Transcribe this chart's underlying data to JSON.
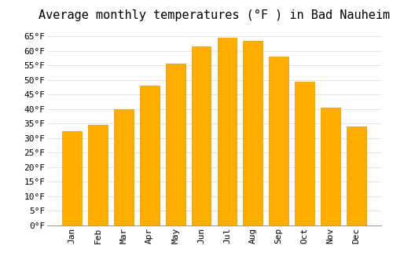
{
  "title": "Average monthly temperatures (°F ) in Bad Nauheim",
  "months": [
    "Jan",
    "Feb",
    "Mar",
    "Apr",
    "May",
    "Jun",
    "Jul",
    "Aug",
    "Sep",
    "Oct",
    "Nov",
    "Dec"
  ],
  "values": [
    32.5,
    34.5,
    40.0,
    48.0,
    55.5,
    61.5,
    64.5,
    63.5,
    58.0,
    49.5,
    40.5,
    34.0
  ],
  "bar_color": "#FFAE00",
  "bar_edge_color": "#E09500",
  "background_color": "#FFFFFF",
  "grid_color": "#DDDDDD",
  "ylim": [
    0,
    68
  ],
  "yticks": [
    0,
    5,
    10,
    15,
    20,
    25,
    30,
    35,
    40,
    45,
    50,
    55,
    60,
    65
  ],
  "ylabel_suffix": "°F",
  "title_fontsize": 11,
  "tick_fontsize": 8,
  "font_family": "monospace"
}
